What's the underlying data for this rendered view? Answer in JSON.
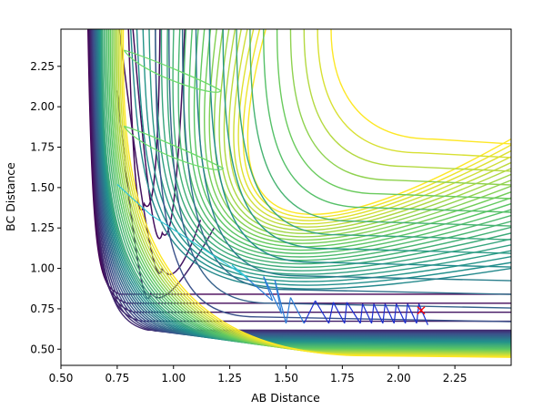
{
  "chart_data": {
    "type": "contour",
    "title": "",
    "xlabel": "AB Distance",
    "ylabel": "BC Distance",
    "xlim": [
      0.5,
      2.5
    ],
    "ylim": [
      0.4,
      2.48
    ],
    "xticks": [
      0.5,
      0.75,
      1.0,
      1.25,
      1.5,
      1.75,
      2.0,
      2.25
    ],
    "yticks": [
      0.5,
      0.75,
      1.0,
      1.25,
      1.5,
      1.75,
      2.0,
      2.25
    ],
    "xtick_labels": [
      "0.50",
      "0.75",
      "1.00",
      "1.25",
      "1.50",
      "1.75",
      "2.00",
      "2.25"
    ],
    "ytick_labels": [
      "0.50",
      "0.75",
      "1.00",
      "1.25",
      "1.50",
      "1.75",
      "2.00",
      "2.25"
    ],
    "grid": false,
    "colormap": [
      "#440154",
      "#3b528b",
      "#21918c",
      "#5ec962",
      "#fde725"
    ],
    "marker": {
      "x": 2.1,
      "y": 0.74,
      "symbol": "x",
      "color": "#ff0000"
    },
    "trajectory": [
      [
        2.13,
        0.65
      ],
      [
        2.09,
        0.78
      ],
      [
        2.08,
        0.66
      ],
      [
        2.04,
        0.78
      ],
      [
        2.03,
        0.66
      ],
      [
        1.99,
        0.78
      ],
      [
        1.98,
        0.66
      ],
      [
        1.94,
        0.78
      ],
      [
        1.93,
        0.66
      ],
      [
        1.89,
        0.78
      ],
      [
        1.88,
        0.66
      ],
      [
        1.84,
        0.78
      ],
      [
        1.83,
        0.66
      ],
      [
        1.77,
        0.79
      ],
      [
        1.76,
        0.66
      ],
      [
        1.71,
        0.79
      ],
      [
        1.69,
        0.66
      ],
      [
        1.63,
        0.8
      ],
      [
        1.58,
        0.66
      ],
      [
        1.52,
        0.82
      ],
      [
        1.5,
        0.66
      ],
      [
        1.45,
        0.93
      ],
      [
        1.48,
        0.72
      ],
      [
        1.4,
        0.95
      ],
      [
        1.44,
        0.8
      ],
      [
        1.26,
        1.02
      ],
      [
        1.33,
        0.94
      ],
      [
        1.1,
        1.15
      ],
      [
        1.0,
        1.24
      ],
      [
        0.9,
        1.33
      ],
      [
        0.82,
        1.43
      ],
      [
        0.75,
        1.52
      ]
    ]
  }
}
